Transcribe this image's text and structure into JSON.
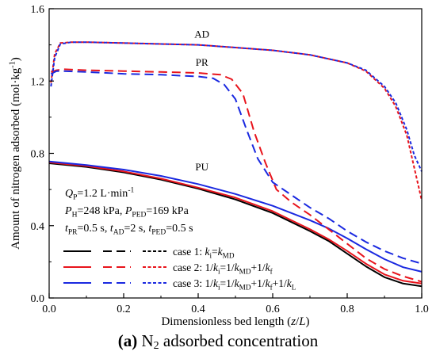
{
  "chart_data": {
    "type": "line",
    "xlabel_parts": [
      {
        "t": "Dimensionless bed length ("
      },
      {
        "t": "z",
        "i": true
      },
      {
        "t": "/"
      },
      {
        "t": "L",
        "i": true
      },
      {
        "t": ")"
      }
    ],
    "ylabel_parts": [
      {
        "t": "Amount of nitrogen adsorbed (mol·kg"
      },
      {
        "t": "-1",
        "sup": true
      },
      {
        "t": ")"
      }
    ],
    "xlim": [
      0,
      1.0
    ],
    "ylim": [
      0,
      1.6
    ],
    "xticks": [
      "0.0",
      "0.2",
      "0.4",
      "0.6",
      "0.8",
      "1.0"
    ],
    "xtick_values": [
      0,
      0.2,
      0.4,
      0.6,
      0.8,
      1.0
    ],
    "yticks": [
      "0.0",
      "0.4",
      "0.8",
      "1.2",
      "1.6"
    ],
    "ytick_values": [
      0,
      0.4,
      0.8,
      1.2,
      1.6
    ],
    "grid": false,
    "legend_placement": "bottom-right",
    "region_labels": [
      {
        "text": "AD",
        "x": 0.41,
        "y": 1.44
      },
      {
        "text": "PR",
        "x": 0.41,
        "y": 1.285
      },
      {
        "text": "PU",
        "x": 0.41,
        "y": 0.705
      }
    ],
    "conditions": [
      [
        {
          "t": "Q",
          "i": true
        },
        {
          "t": "P",
          "sub": true
        },
        {
          "t": "=1.2 L·min"
        },
        {
          "t": "-1",
          "sup": true
        }
      ],
      [
        {
          "t": "P",
          "i": true
        },
        {
          "t": "H",
          "sub": true
        },
        {
          "t": "=248 kPa, "
        },
        {
          "t": "P",
          "i": true
        },
        {
          "t": "PED",
          "sub": true
        },
        {
          "t": "=169 kPa"
        }
      ],
      [
        {
          "t": "t",
          "i": true
        },
        {
          "t": "PR",
          "sub": true
        },
        {
          "t": "=0.5 s, "
        },
        {
          "t": "t",
          "i": true
        },
        {
          "t": "AD",
          "sub": true
        },
        {
          "t": "=2 s, "
        },
        {
          "t": "t",
          "i": true
        },
        {
          "t": "PED",
          "sub": true
        },
        {
          "t": "=0.5 s"
        }
      ]
    ],
    "legend": [
      {
        "color": "#000000",
        "parts": [
          {
            "t": "case 1: "
          },
          {
            "t": "k",
            "i": true
          },
          {
            "t": "i",
            "sub": true
          },
          {
            "t": "="
          },
          {
            "t": "k",
            "i": true
          },
          {
            "t": "MD",
            "sub": true
          }
        ]
      },
      {
        "color": "#e8141c",
        "parts": [
          {
            "t": "case 2: 1/"
          },
          {
            "t": "k",
            "i": true
          },
          {
            "t": "i",
            "sub": true
          },
          {
            "t": "=1/"
          },
          {
            "t": "k",
            "i": true
          },
          {
            "t": "MD",
            "sub": true
          },
          {
            "t": "+1/"
          },
          {
            "t": "k",
            "i": true
          },
          {
            "t": "f",
            "sub": true
          }
        ]
      },
      {
        "color": "#1a29e0",
        "parts": [
          {
            "t": "case 3: 1/"
          },
          {
            "t": "k",
            "i": true
          },
          {
            "t": "i",
            "sub": true
          },
          {
            "t": "=1/"
          },
          {
            "t": "k",
            "i": true
          },
          {
            "t": "MD",
            "sub": true
          },
          {
            "t": "+1/"
          },
          {
            "t": "k",
            "i": true
          },
          {
            "t": "f",
            "sub": true
          },
          {
            "t": "+1/"
          },
          {
            "t": "k",
            "i": true
          },
          {
            "t": "L",
            "sub": true
          }
        ]
      }
    ],
    "series": [
      {
        "case": 1,
        "step": "PU",
        "color": "#000000",
        "dash": "solid",
        "x": [
          0,
          0.1,
          0.2,
          0.3,
          0.4,
          0.5,
          0.6,
          0.7,
          0.75,
          0.8,
          0.85,
          0.9,
          0.95,
          1.0
        ],
        "y": [
          0.745,
          0.725,
          0.695,
          0.655,
          0.605,
          0.545,
          0.47,
          0.37,
          0.315,
          0.245,
          0.175,
          0.115,
          0.08,
          0.065
        ]
      },
      {
        "case": 2,
        "step": "PU",
        "color": "#e8141c",
        "dash": "solid",
        "x": [
          0,
          0.1,
          0.2,
          0.3,
          0.4,
          0.5,
          0.6,
          0.7,
          0.75,
          0.8,
          0.85,
          0.9,
          0.95,
          1.0
        ],
        "y": [
          0.75,
          0.73,
          0.7,
          0.66,
          0.61,
          0.555,
          0.48,
          0.38,
          0.325,
          0.26,
          0.19,
          0.13,
          0.095,
          0.08
        ]
      },
      {
        "case": 3,
        "step": "PU",
        "color": "#1a29e0",
        "dash": "solid",
        "x": [
          0,
          0.1,
          0.2,
          0.3,
          0.4,
          0.5,
          0.6,
          0.7,
          0.75,
          0.8,
          0.85,
          0.9,
          0.95,
          1.0
        ],
        "y": [
          0.755,
          0.735,
          0.71,
          0.675,
          0.63,
          0.575,
          0.51,
          0.43,
          0.385,
          0.33,
          0.27,
          0.215,
          0.17,
          0.145
        ]
      },
      {
        "case": 2,
        "step": "PR",
        "color": "#e8141c",
        "dash": "dashed",
        "x": [
          0.005,
          0.02,
          0.04,
          0.1,
          0.2,
          0.3,
          0.4,
          0.46,
          0.49,
          0.52,
          0.55,
          0.58,
          0.61,
          0.65,
          0.7,
          0.75,
          0.8,
          0.85,
          0.9,
          0.95,
          1.0
        ],
        "y": [
          1.25,
          1.26,
          1.265,
          1.26,
          1.255,
          1.25,
          1.245,
          1.235,
          1.21,
          1.13,
          0.92,
          0.75,
          0.6,
          0.53,
          0.46,
          0.38,
          0.3,
          0.22,
          0.16,
          0.12,
          0.09
        ]
      },
      {
        "case": 3,
        "step": "PR",
        "color": "#1a29e0",
        "dash": "dashed",
        "x": [
          0.005,
          0.02,
          0.04,
          0.1,
          0.2,
          0.3,
          0.4,
          0.44,
          0.47,
          0.5,
          0.53,
          0.56,
          0.6,
          0.65,
          0.7,
          0.75,
          0.8,
          0.85,
          0.9,
          0.95,
          1.0
        ],
        "y": [
          1.24,
          1.255,
          1.255,
          1.25,
          1.24,
          1.235,
          1.225,
          1.215,
          1.18,
          1.1,
          0.93,
          0.77,
          0.64,
          0.57,
          0.5,
          0.44,
          0.37,
          0.31,
          0.26,
          0.22,
          0.19
        ]
      },
      {
        "case": 2,
        "step": "AD",
        "color": "#e8141c",
        "dash": "dotted",
        "x": [
          0.005,
          0.015,
          0.03,
          0.06,
          0.1,
          0.2,
          0.3,
          0.4,
          0.5,
          0.6,
          0.7,
          0.8,
          0.85,
          0.9,
          0.93,
          0.96,
          0.98,
          1.0
        ],
        "y": [
          1.19,
          1.35,
          1.41,
          1.415,
          1.415,
          1.41,
          1.405,
          1.4,
          1.385,
          1.37,
          1.345,
          1.3,
          1.255,
          1.16,
          1.06,
          0.9,
          0.72,
          0.54
        ]
      },
      {
        "case": 3,
        "step": "AD",
        "color": "#1a29e0",
        "dash": "dotted",
        "x": [
          0.005,
          0.015,
          0.03,
          0.06,
          0.1,
          0.2,
          0.3,
          0.4,
          0.5,
          0.6,
          0.7,
          0.8,
          0.85,
          0.9,
          0.93,
          0.96,
          0.98,
          1.0
        ],
        "y": [
          1.17,
          1.33,
          1.405,
          1.415,
          1.415,
          1.41,
          1.405,
          1.4,
          1.385,
          1.37,
          1.345,
          1.3,
          1.26,
          1.17,
          1.08,
          0.93,
          0.79,
          0.7
        ]
      }
    ]
  },
  "caption": {
    "label": "(a)",
    "species": "N",
    "species_sub": "2",
    "text": " adsorbed concentration"
  }
}
